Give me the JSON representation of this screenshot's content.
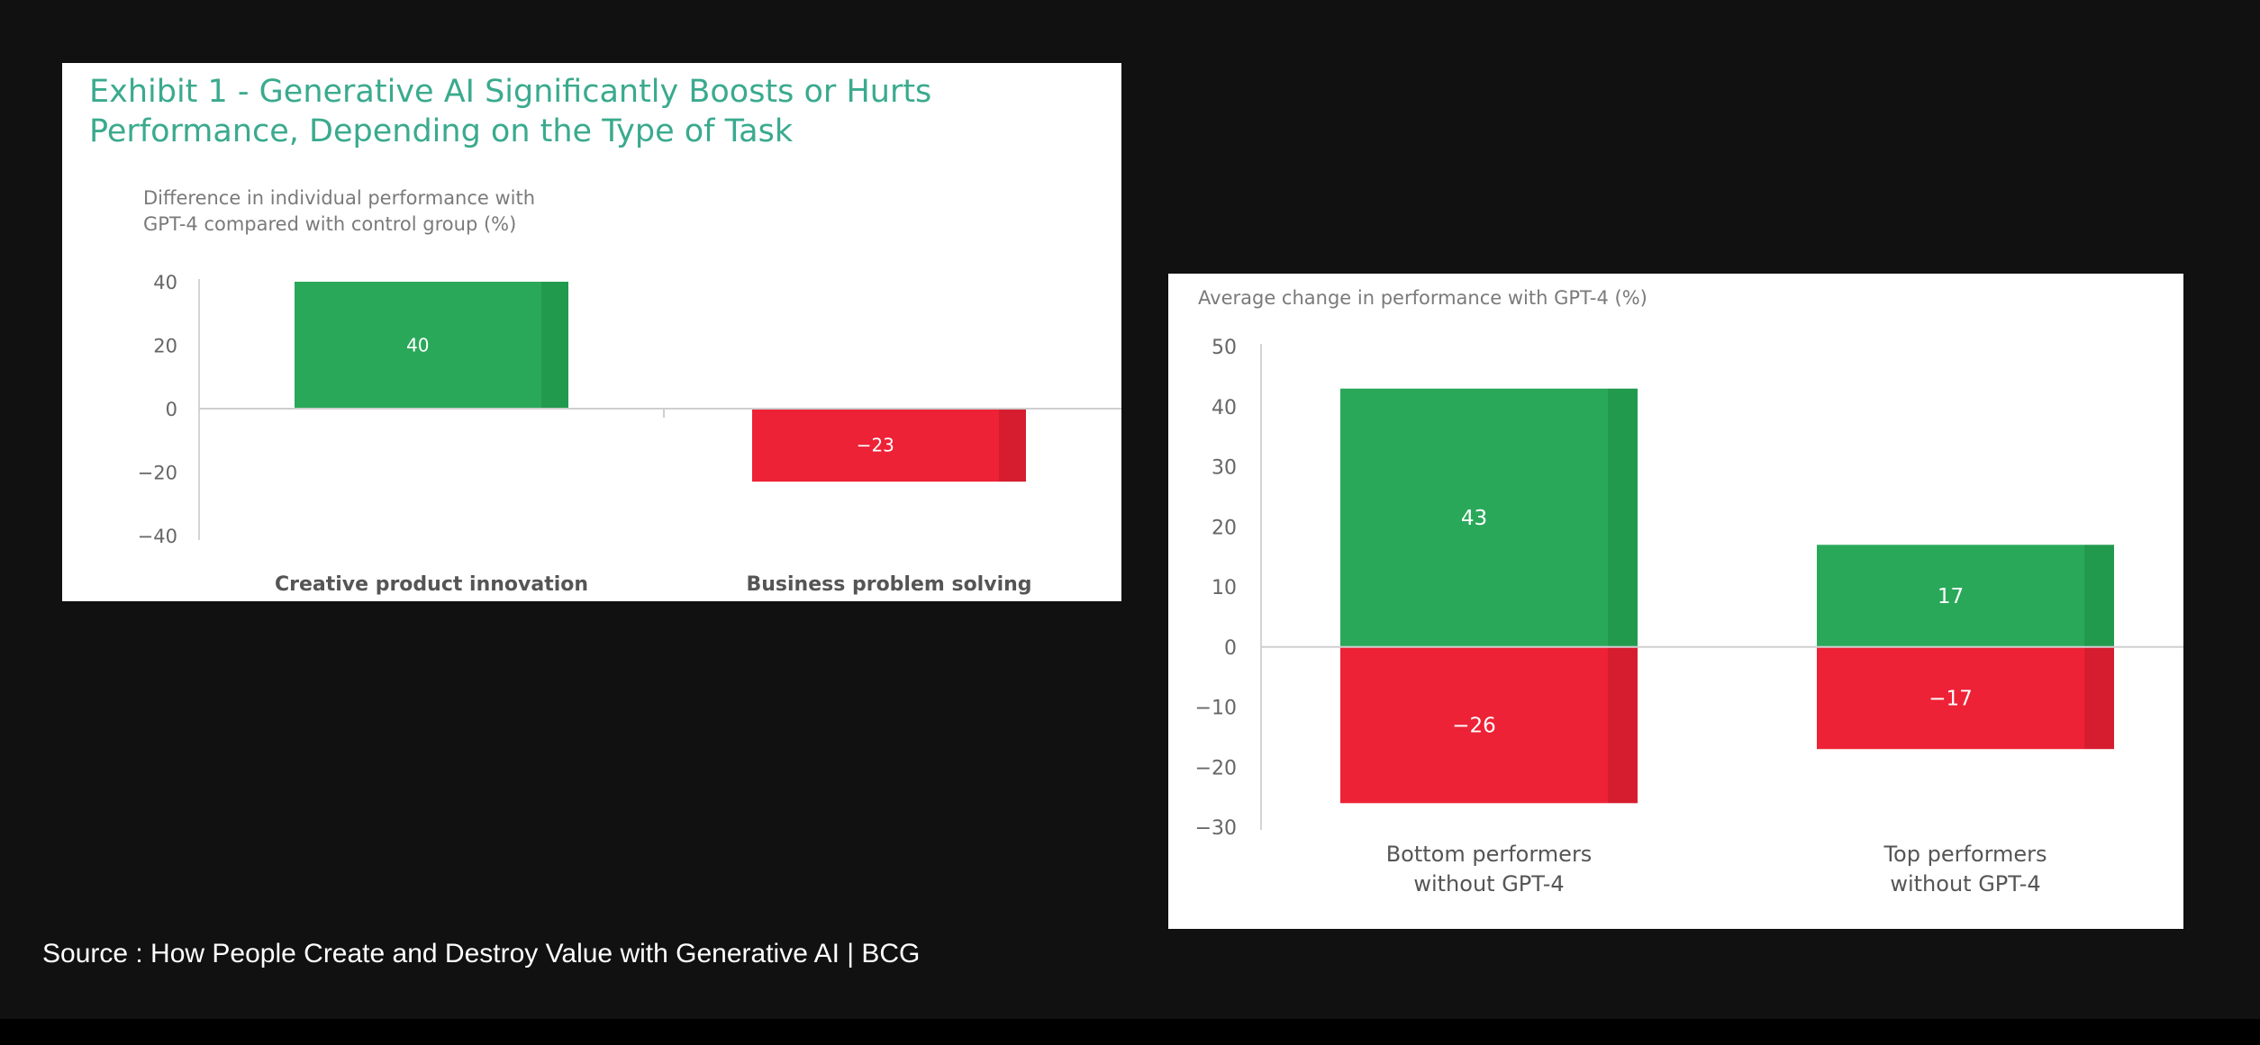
{
  "colors": {
    "positive": "#2aa85a",
    "positive_shade": "#229a4e",
    "negative": "#ed2236",
    "negative_shade": "#d61d30",
    "title": "#3aaa8e",
    "axis_text": "#666666",
    "background": "#111111"
  },
  "exhibit_title": "Exhibit 1 - Generative AI Significantly Boosts or Hurts Performance, Depending on the Type of Task",
  "source": "Source : How People Create and Destroy Value with Generative AI | BCG",
  "chart_data": [
    {
      "type": "bar",
      "title": "Difference in individual performance with GPT-4 compared with control group (%)",
      "categories": [
        "Creative product innovation",
        "Business problem solving"
      ],
      "values": [
        40,
        -23
      ],
      "value_labels": [
        "40",
        "−23"
      ],
      "ylim": [
        -40,
        40
      ],
      "yticks": [
        40,
        20,
        0,
        -20,
        -40
      ],
      "ytick_labels": [
        "40",
        "20",
        "0",
        "−20",
        "−40"
      ],
      "grid": false,
      "legend": "none"
    },
    {
      "type": "bar",
      "title": "Average change in performance with GPT-4 (%)",
      "categories": [
        [
          "Bottom performers",
          "without GPT-4"
        ],
        [
          "Top performers",
          "without GPT-4"
        ]
      ],
      "series": [
        {
          "values": [
            43,
            17
          ],
          "value_labels": [
            "43",
            "17"
          ]
        },
        {
          "values": [
            -26,
            -17
          ],
          "value_labels": [
            "−26",
            "−17"
          ]
        }
      ],
      "ylim": [
        -30,
        50
      ],
      "yticks": [
        50,
        40,
        30,
        20,
        10,
        0,
        -10,
        -20,
        -30
      ],
      "ytick_labels": [
        "50",
        "40",
        "30",
        "20",
        "10",
        "0",
        "−10",
        "−20",
        "−30"
      ],
      "grid": false,
      "legend": "none"
    }
  ]
}
